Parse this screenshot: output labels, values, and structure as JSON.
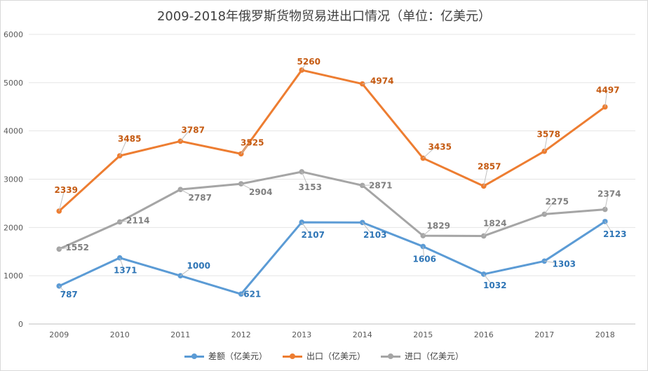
{
  "chart_data": {
    "type": "line",
    "title": "2009-2018年俄罗斯货物贸易进出口情况（单位：亿美元）",
    "xlabel": "",
    "ylabel": "",
    "categories": [
      "2009",
      "2010",
      "2011",
      "2012",
      "2013",
      "2014",
      "2015",
      "2016",
      "2017",
      "2018"
    ],
    "ylim": [
      0,
      6000
    ],
    "yticks": [
      0,
      1000,
      2000,
      3000,
      4000,
      5000,
      6000
    ],
    "grid": "horizontal",
    "legend_position": "bottom",
    "series": [
      {
        "name": "差额（亿美元）",
        "color": "#5b9bd5",
        "label_color": "#2e75b6",
        "values": [
          787,
          1371,
          1000,
          621,
          2107,
          2103,
          1606,
          1032,
          1303,
          2123
        ]
      },
      {
        "name": "出口（亿美元）",
        "color": "#ed7d31",
        "label_color": "#c55a11",
        "values": [
          2339,
          3485,
          3787,
          3525,
          5260,
          4974,
          3435,
          2857,
          3578,
          4497
        ]
      },
      {
        "name": "进口（亿美元）",
        "color": "#a5a5a5",
        "label_color": "#7f7f7f",
        "values": [
          1552,
          2114,
          2787,
          2904,
          3153,
          2871,
          1829,
          1824,
          2275,
          2374
        ]
      }
    ]
  }
}
